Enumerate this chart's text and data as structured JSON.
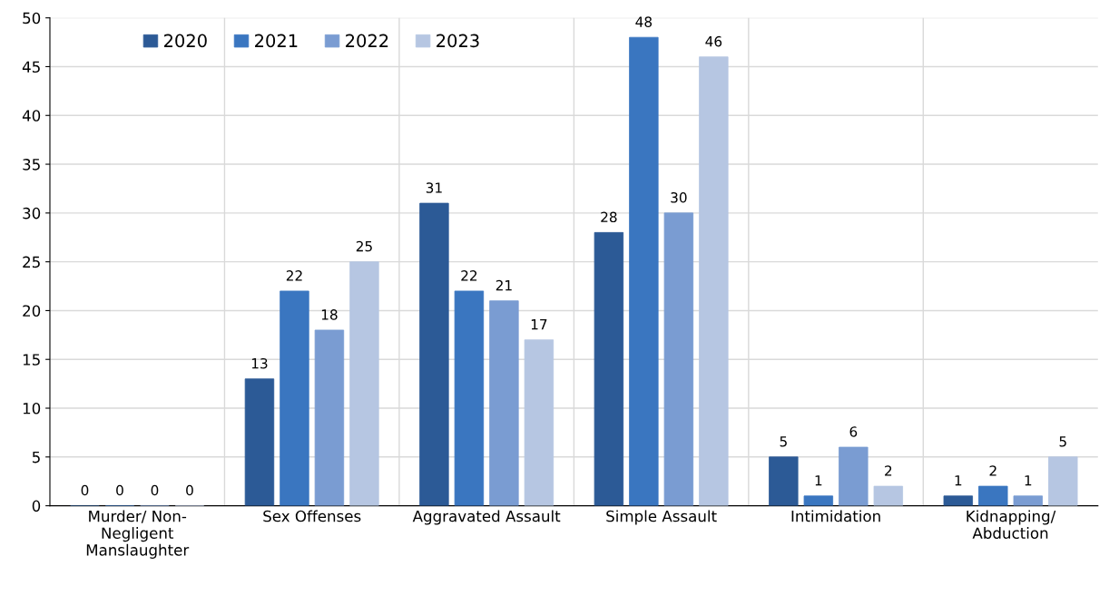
{
  "chart_data": {
    "type": "bar",
    "categories": [
      "Murder/ Non-\nNegligent\nManslaughter",
      "Sex Offenses",
      "Aggravated Assault",
      "Simple Assault",
      "Intimidation",
      "Kidnapping/\nAbduction"
    ],
    "series": [
      {
        "name": "2020",
        "color": "#2c5a96",
        "values": [
          0,
          13,
          31,
          28,
          5,
          1
        ]
      },
      {
        "name": "2021",
        "color": "#3a76c0",
        "values": [
          0,
          22,
          22,
          48,
          1,
          2
        ]
      },
      {
        "name": "2022",
        "color": "#7a9cd2",
        "values": [
          0,
          18,
          21,
          30,
          6,
          1
        ]
      },
      {
        "name": "2023",
        "color": "#b6c6e2",
        "values": [
          0,
          25,
          17,
          46,
          2,
          5
        ]
      }
    ],
    "ylim": [
      0,
      50
    ],
    "yticks": [
      0,
      5,
      10,
      15,
      20,
      25,
      30,
      35,
      40,
      45,
      50
    ],
    "grid": true,
    "legend": "top",
    "data_labels": true
  }
}
